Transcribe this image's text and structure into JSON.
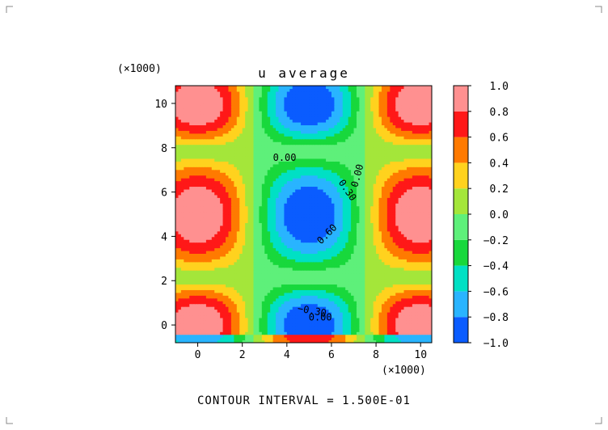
{
  "chart_data": {
    "type": "heatmap",
    "title": "u average",
    "x_multiplier": "(×1000)",
    "y_multiplier": "(×1000)",
    "xlim": [
      -1.0,
      10.5
    ],
    "ylim": [
      -0.8,
      10.8
    ],
    "x_ticks": [
      0,
      2,
      4,
      6,
      8,
      10
    ],
    "y_ticks": [
      0,
      2,
      4,
      6,
      8,
      10
    ],
    "x_tick_labels": [
      "0",
      "2",
      "4",
      "6",
      "8",
      "10"
    ],
    "y_tick_labels": [
      "0",
      "2",
      "4",
      "6",
      "8",
      "10"
    ],
    "colorbar": {
      "levels": [
        -1.0,
        -0.8,
        -0.6,
        -0.4,
        -0.2,
        0.0,
        0.2,
        0.4,
        0.6,
        0.8,
        1.0
      ],
      "tick_labels": [
        "−1.0",
        "−0.8",
        "−0.6",
        "−0.4",
        "−0.2",
        "0.0",
        "0.2",
        "0.4",
        "0.6",
        "0.8",
        "1.0"
      ],
      "colors": [
        "#0a5cff",
        "#29b4ff",
        "#00e0c4",
        "#18d83c",
        "#5ef07a",
        "#a4e63a",
        "#ffd21e",
        "#ff7a00",
        "#ff1818",
        "#ff9090"
      ]
    },
    "contour_labels": [
      {
        "text": "0.00",
        "x": 3.9,
        "y": 7.4,
        "rotate": 0
      },
      {
        "text": "0.00",
        "x": 7.3,
        "y": 6.7,
        "rotate": -75
      },
      {
        "text": "0.30",
        "x": 6.6,
        "y": 6.0,
        "rotate": 55
      },
      {
        "text": "0.60",
        "x": 5.9,
        "y": 4.0,
        "rotate": -45
      },
      {
        "text": "−0.30",
        "x": 5.1,
        "y": 0.5,
        "rotate": 10
      },
      {
        "text": "0.00",
        "x": 5.5,
        "y": 0.2,
        "rotate": 0
      }
    ],
    "contour_interval_text": "CONTOUR INTERVAL = 1.500E-01"
  }
}
